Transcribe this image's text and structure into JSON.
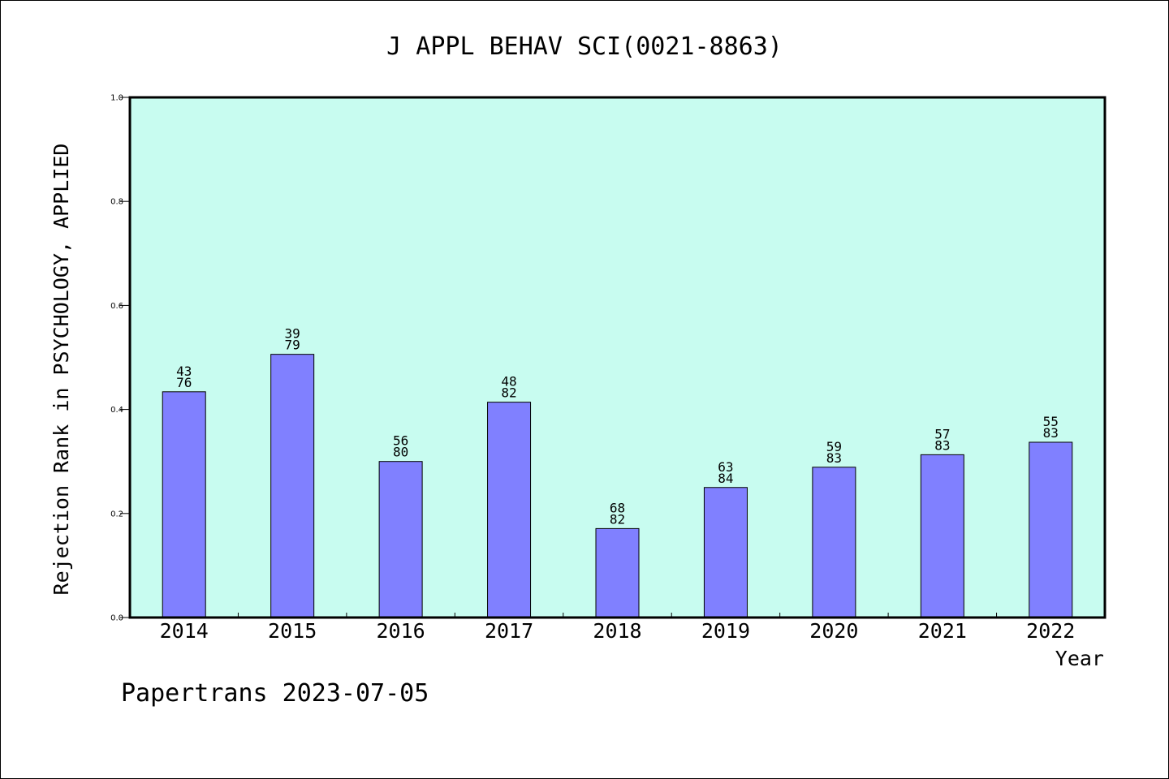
{
  "chart_data": {
    "type": "bar",
    "title": "J APPL BEHAV SCI(0021-8863)",
    "xlabel": "Year",
    "ylabel": "Rejection Rank in PSYCHOLOGY, APPLIED",
    "ylim": [
      0,
      1.0
    ],
    "yticks": [
      "0.0",
      "0.2",
      "0.4",
      "0.6",
      "0.8",
      "1.0"
    ],
    "grid": false,
    "legend": "none",
    "categories": [
      "2014",
      "2015",
      "2016",
      "2017",
      "2018",
      "2019",
      "2020",
      "2021",
      "2022"
    ],
    "values": [
      0.434,
      0.506,
      0.3,
      0.414,
      0.171,
      0.25,
      0.289,
      0.313,
      0.337
    ],
    "labels_top": [
      "43",
      "39",
      "56",
      "48",
      "68",
      "63",
      "59",
      "57",
      "55"
    ],
    "labels_bottom": [
      "76",
      "79",
      "80",
      "82",
      "82",
      "84",
      "83",
      "83",
      "83"
    ],
    "colors": {
      "plot_background": "#c8fcf0",
      "bar_fill": "#8080ff",
      "axis": "#000000"
    }
  },
  "footer": {
    "text": "Papertrans 2023-07-05"
  }
}
